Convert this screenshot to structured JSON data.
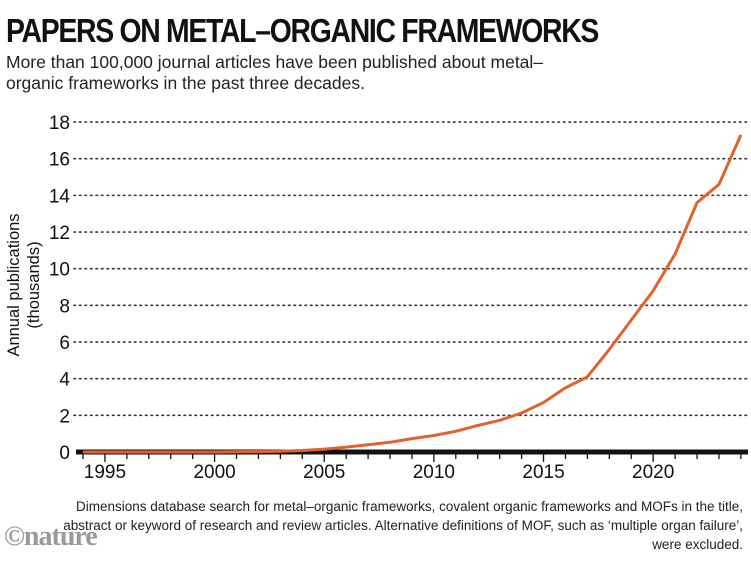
{
  "title": "PAPERS ON METAL–ORGANIC FRAMEWORKS",
  "subtitle": "More than 100,000 journal articles have been published about metal–organic frameworks in the past three decades.",
  "note": "Dimensions database search for metal–organic frameworks, covalent organic frameworks and MOFs in the title, abstract or keyword of research and review articles. Alternative definitions of MOF, such as ‘multiple organ failure’, were excluded.",
  "logo": "©nature",
  "colors": {
    "line": "#e0622d",
    "axis": "#111111",
    "grid": "#333333"
  },
  "chart_data": {
    "type": "line",
    "title": "PAPERS ON METAL–ORGANIC FRAMEWORKS",
    "xlabel": "",
    "ylabel": "Annual publications (thousands)",
    "ylabel_lines": [
      "Annual publications",
      "(thousands)"
    ],
    "xlim": [
      1994,
      2024
    ],
    "ylim": [
      0,
      18
    ],
    "yticks": [
      0,
      2,
      4,
      6,
      8,
      10,
      12,
      14,
      16,
      18
    ],
    "xticks_labeled": [
      1995,
      2000,
      2005,
      2010,
      2015,
      2020
    ],
    "grid": "horizontal dotted",
    "series": [
      {
        "name": "Annual publications",
        "x": [
          1994,
          1995,
          1996,
          1997,
          1998,
          1999,
          2000,
          2001,
          2002,
          2003,
          2004,
          2005,
          2006,
          2007,
          2008,
          2009,
          2010,
          2011,
          2012,
          2013,
          2014,
          2015,
          2016,
          2017,
          2018,
          2019,
          2020,
          2021,
          2022,
          2023,
          2024
        ],
        "values": [
          0,
          0,
          0,
          0,
          0,
          0,
          0,
          0.01,
          0.02,
          0.04,
          0.08,
          0.16,
          0.27,
          0.4,
          0.53,
          0.73,
          0.9,
          1.13,
          1.45,
          1.73,
          2.13,
          2.7,
          3.5,
          4.1,
          5.6,
          7.2,
          8.8,
          10.8,
          13.6,
          14.6,
          17.3
        ]
      }
    ]
  }
}
